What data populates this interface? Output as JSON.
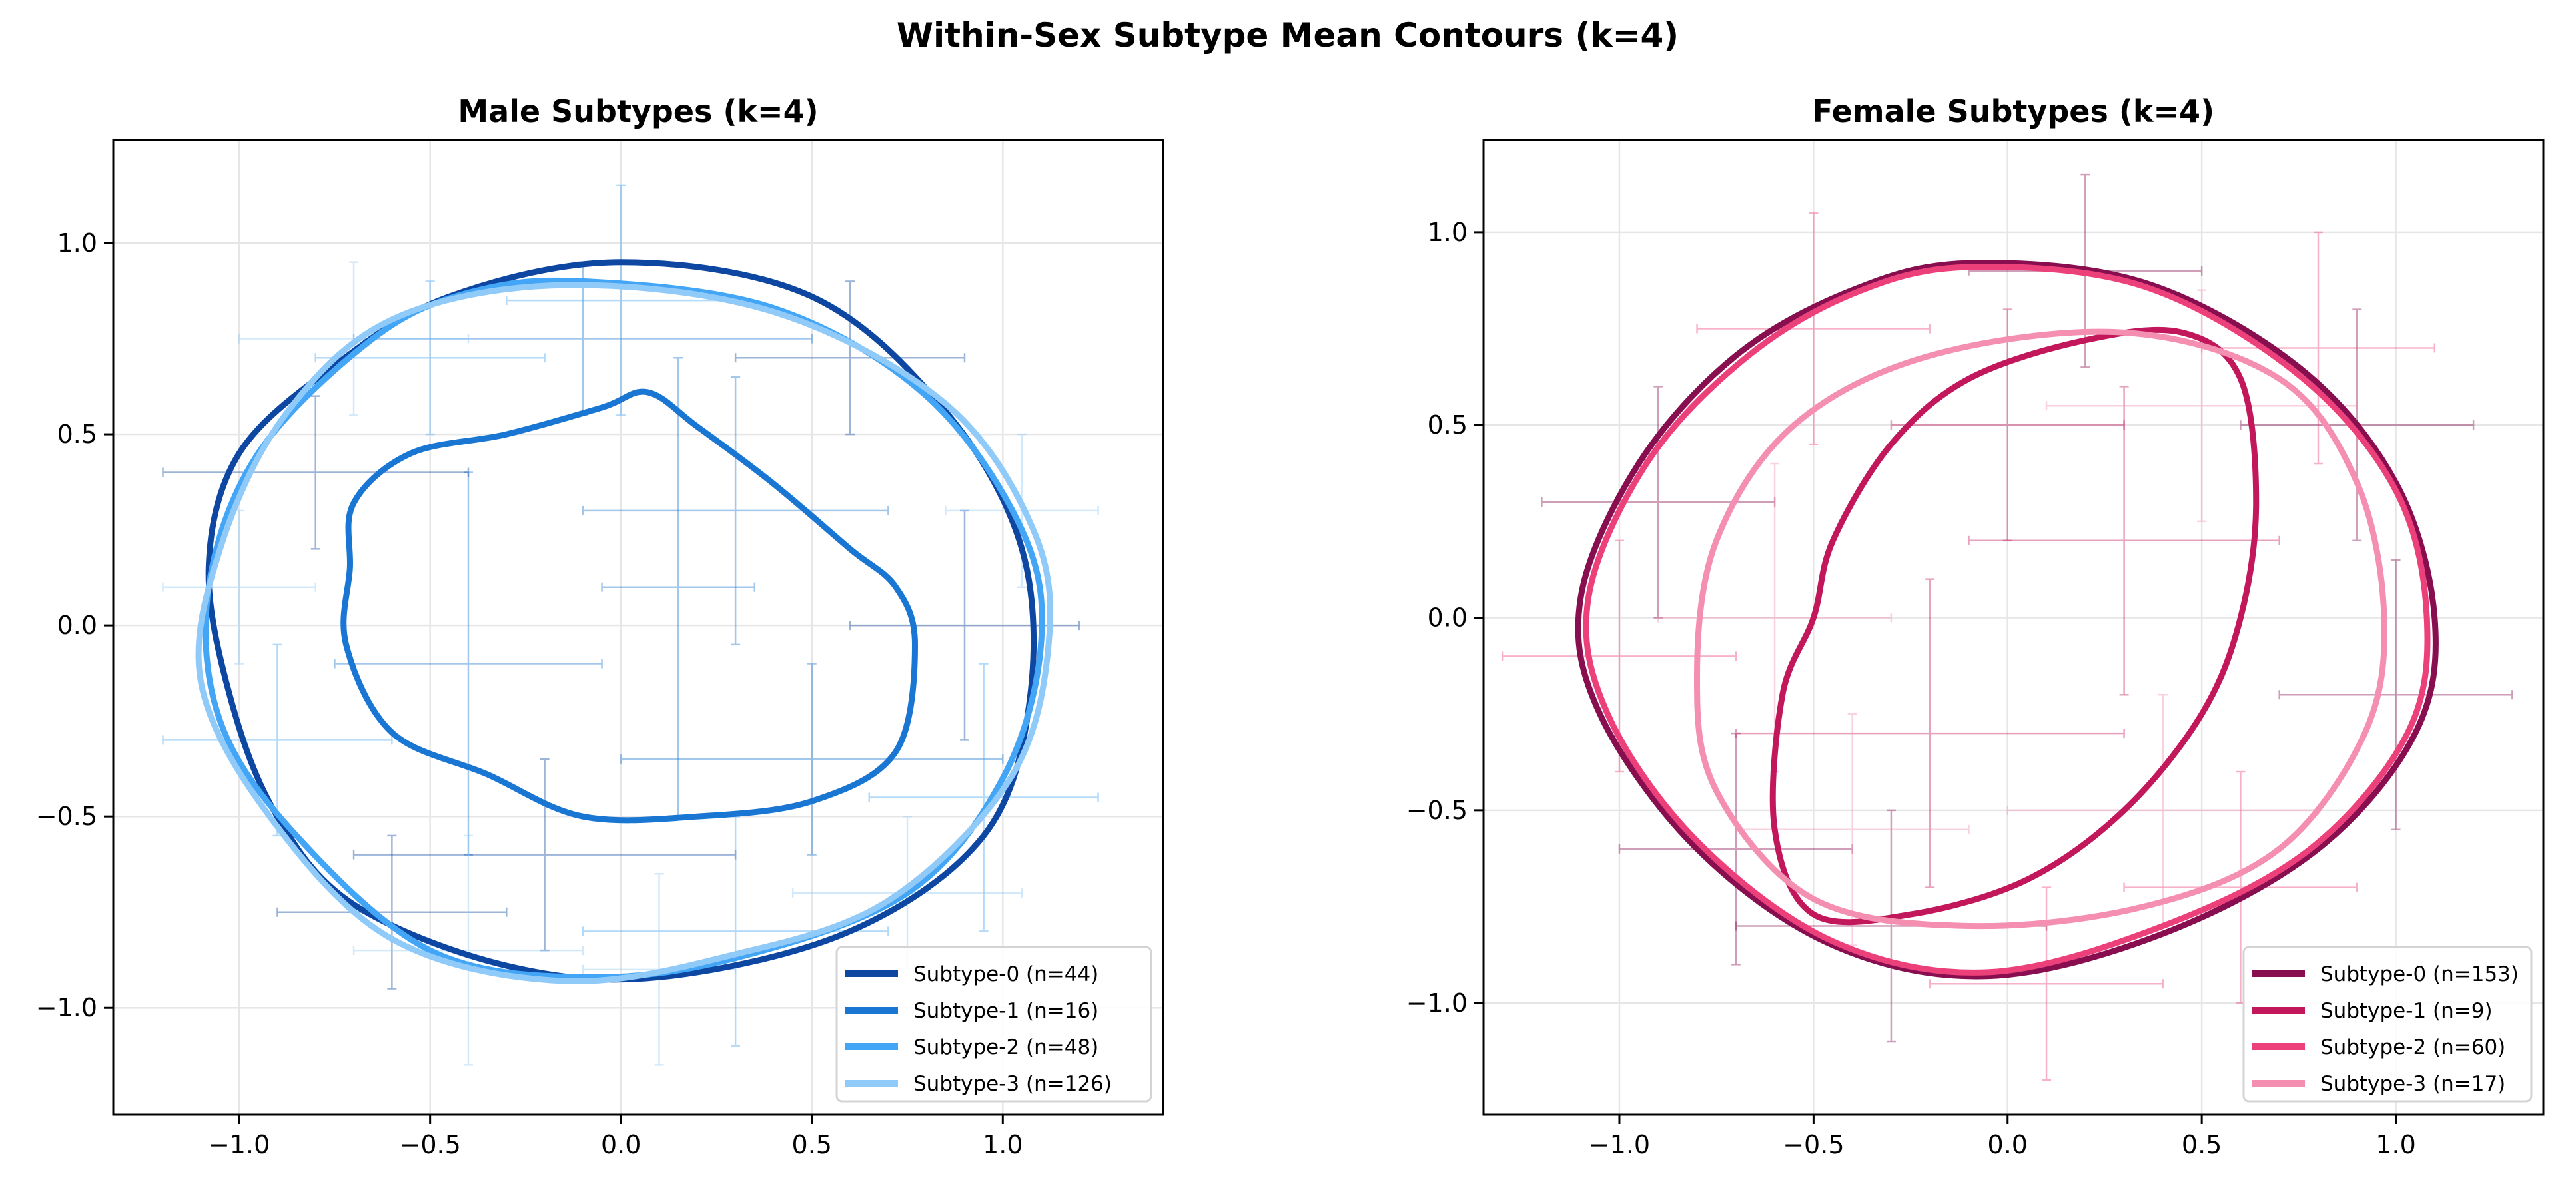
{
  "chart_data": {
    "suptitle": "Within-Sex Subtype Mean Contours (k=4)",
    "panels": [
      {
        "type": "line",
        "title": "Male Subtypes (k=4)",
        "xlim": [
          -1.33,
          1.42
        ],
        "ylim": [
          -1.28,
          1.27
        ],
        "xticks": [
          -1.0,
          -0.5,
          0.0,
          0.5,
          1.0
        ],
        "yticks": [
          -1.0,
          -0.5,
          0.0,
          0.5,
          1.0
        ],
        "xtick_labels": [
          "−1.0",
          "−0.5",
          "0.0",
          "0.5",
          "1.0"
        ],
        "ytick_labels": [
          "−1.0",
          "−0.5",
          "0.0",
          "0.5",
          "1.0"
        ],
        "grid": true,
        "legend_position": "lower-right",
        "series": [
          {
            "name": "Subtype-0 (n=44)",
            "color": "#0d47a1",
            "points": [
              [
                0,
                0.95
              ],
              [
                0.5,
                0.86
              ],
              [
                0.85,
                0.56
              ],
              [
                1.05,
                0.2
              ],
              [
                1.07,
                -0.2
              ],
              [
                0.95,
                -0.55
              ],
              [
                0.6,
                -0.8
              ],
              [
                0.1,
                -0.92
              ],
              [
                -0.3,
                -0.89
              ],
              [
                -0.7,
                -0.73
              ],
              [
                -0.9,
                -0.5
              ],
              [
                -1.02,
                -0.2
              ],
              [
                -1.08,
                0.15
              ],
              [
                -1.0,
                0.45
              ],
              [
                -0.75,
                0.68
              ],
              [
                -0.45,
                0.86
              ]
            ]
          },
          {
            "name": "Subtype-1 (n=16)",
            "color": "#1976d2",
            "points": [
              [
                0.07,
                0.61
              ],
              [
                0.2,
                0.52
              ],
              [
                0.4,
                0.37
              ],
              [
                0.6,
                0.2
              ],
              [
                0.72,
                0.1
              ],
              [
                0.77,
                -0.05
              ],
              [
                0.72,
                -0.33
              ],
              [
                0.5,
                -0.46
              ],
              [
                0.2,
                -0.5
              ],
              [
                -0.1,
                -0.5
              ],
              [
                -0.35,
                -0.39
              ],
              [
                -0.6,
                -0.28
              ],
              [
                -0.72,
                -0.05
              ],
              [
                -0.71,
                0.15
              ],
              [
                -0.7,
                0.32
              ],
              [
                -0.55,
                0.45
              ],
              [
                -0.3,
                0.5
              ],
              [
                -0.05,
                0.57
              ]
            ]
          },
          {
            "name": "Subtype-2 (n=48)",
            "color": "#42a5f5",
            "points": [
              [
                -0.1,
                0.9
              ],
              [
                0.4,
                0.83
              ],
              [
                0.8,
                0.6
              ],
              [
                1.05,
                0.25
              ],
              [
                1.1,
                -0.05
              ],
              [
                1.0,
                -0.4
              ],
              [
                0.75,
                -0.7
              ],
              [
                0.3,
                -0.87
              ],
              [
                -0.1,
                -0.92
              ],
              [
                -0.5,
                -0.85
              ],
              [
                -0.85,
                -0.55
              ],
              [
                -1.05,
                -0.25
              ],
              [
                -1.08,
                0.1
              ],
              [
                -0.95,
                0.45
              ],
              [
                -0.65,
                0.75
              ],
              [
                -0.4,
                0.87
              ]
            ]
          },
          {
            "name": "Subtype-3 (n=126)",
            "color": "#90caf9",
            "points": [
              [
                -0.15,
                0.89
              ],
              [
                0.4,
                0.82
              ],
              [
                0.85,
                0.58
              ],
              [
                1.08,
                0.25
              ],
              [
                1.12,
                -0.05
              ],
              [
                1.02,
                -0.4
              ],
              [
                0.7,
                -0.72
              ],
              [
                0.3,
                -0.86
              ],
              [
                -0.15,
                -0.93
              ],
              [
                -0.6,
                -0.82
              ],
              [
                -0.92,
                -0.5
              ],
              [
                -1.1,
                -0.15
              ],
              [
                -1.05,
                0.2
              ],
              [
                -0.88,
                0.55
              ],
              [
                -0.6,
                0.8
              ]
            ]
          }
        ],
        "errorbars": [
          [
            -0.1,
            0.75,
            0.6,
            0.2,
            1
          ],
          [
            0.3,
            0.3,
            0.4,
            0.35,
            1
          ],
          [
            -0.4,
            -0.1,
            0.35,
            0.5,
            1
          ],
          [
            0.5,
            -0.35,
            0.5,
            0.25,
            1
          ],
          [
            0.15,
            0.1,
            0.2,
            0.6,
            1
          ],
          [
            -0.8,
            0.4,
            0.4,
            0.2,
            0
          ],
          [
            0.9,
            0.0,
            0.3,
            0.3,
            0
          ],
          [
            -0.2,
            -0.6,
            0.5,
            0.25,
            0
          ],
          [
            0.6,
            0.7,
            0.3,
            0.2,
            0
          ],
          [
            -0.6,
            -0.75,
            0.3,
            0.2,
            0
          ],
          [
            -0.9,
            -0.3,
            0.3,
            0.25,
            2
          ],
          [
            0.95,
            -0.45,
            0.3,
            0.35,
            2
          ],
          [
            0.0,
            0.85,
            0.3,
            0.3,
            2
          ],
          [
            0.3,
            -0.8,
            0.4,
            0.3,
            2
          ],
          [
            -0.5,
            0.7,
            0.3,
            0.2,
            2
          ],
          [
            -1.0,
            0.1,
            0.2,
            0.2,
            3
          ],
          [
            1.05,
            0.3,
            0.2,
            0.2,
            3
          ],
          [
            -0.4,
            -0.85,
            0.3,
            0.3,
            3
          ],
          [
            0.1,
            -0.9,
            0.2,
            0.25,
            3
          ],
          [
            -0.7,
            0.75,
            0.3,
            0.2,
            3
          ],
          [
            0.75,
            -0.7,
            0.3,
            0.2,
            3
          ]
        ]
      },
      {
        "type": "line",
        "title": "Female Subtypes (k=4)",
        "xlim": [
          -1.35,
          1.38
        ],
        "ylim": [
          -1.29,
          1.24
        ],
        "xticks": [
          -1.0,
          -0.5,
          0.0,
          0.5,
          1.0
        ],
        "yticks": [
          -1.0,
          -0.5,
          0.0,
          0.5,
          1.0
        ],
        "xtick_labels": [
          "−1.0",
          "−0.5",
          "0.0",
          "0.5",
          "1.0"
        ],
        "ytick_labels": [
          "−1.0",
          "−0.5",
          "0.0",
          "0.5",
          "1.0"
        ],
        "grid": true,
        "legend_position": "lower-right",
        "series": [
          {
            "name": "Subtype-0 (n=153)",
            "color": "#880e4f",
            "points": [
              [
                -0.1,
                0.92
              ],
              [
                0.35,
                0.87
              ],
              [
                0.75,
                0.65
              ],
              [
                1.0,
                0.35
              ],
              [
                1.1,
                0.0
              ],
              [
                1.05,
                -0.3
              ],
              [
                0.8,
                -0.6
              ],
              [
                0.4,
                -0.82
              ],
              [
                -0.05,
                -0.93
              ],
              [
                -0.45,
                -0.85
              ],
              [
                -0.8,
                -0.6
              ],
              [
                -1.05,
                -0.25
              ],
              [
                -1.1,
                0.05
              ],
              [
                -0.95,
                0.4
              ],
              [
                -0.7,
                0.68
              ],
              [
                -0.4,
                0.85
              ]
            ]
          },
          {
            "name": "Subtype-1 (n=9)",
            "color": "#c2185b",
            "points": [
              [
                0.45,
                0.74
              ],
              [
                0.6,
                0.62
              ],
              [
                0.64,
                0.3
              ],
              [
                0.6,
                0.0
              ],
              [
                0.5,
                -0.25
              ],
              [
                0.3,
                -0.5
              ],
              [
                0.05,
                -0.68
              ],
              [
                -0.25,
                -0.77
              ],
              [
                -0.5,
                -0.77
              ],
              [
                -0.6,
                -0.55
              ],
              [
                -0.58,
                -0.2
              ],
              [
                -0.5,
                0.0
              ],
              [
                -0.45,
                0.2
              ],
              [
                -0.3,
                0.45
              ],
              [
                -0.1,
                0.62
              ],
              [
                0.2,
                0.72
              ]
            ]
          },
          {
            "name": "Subtype-2 (n=60)",
            "color": "#ec407a",
            "points": [
              [
                -0.1,
                0.91
              ],
              [
                0.35,
                0.86
              ],
              [
                0.75,
                0.63
              ],
              [
                1.0,
                0.33
              ],
              [
                1.08,
                0.0
              ],
              [
                1.03,
                -0.3
              ],
              [
                0.78,
                -0.6
              ],
              [
                0.4,
                -0.8
              ],
              [
                -0.05,
                -0.92
              ],
              [
                -0.45,
                -0.84
              ],
              [
                -0.8,
                -0.58
              ],
              [
                -1.03,
                -0.25
              ],
              [
                -1.08,
                0.05
              ],
              [
                -0.93,
                0.4
              ],
              [
                -0.68,
                0.67
              ],
              [
                -0.4,
                0.84
              ]
            ]
          },
          {
            "name": "Subtype-3 (n=17)",
            "color": "#f48fb1",
            "points": [
              [
                0.3,
                0.74
              ],
              [
                0.7,
                0.62
              ],
              [
                0.9,
                0.35
              ],
              [
                0.97,
                0.0
              ],
              [
                0.92,
                -0.3
              ],
              [
                0.7,
                -0.6
              ],
              [
                0.35,
                -0.75
              ],
              [
                -0.1,
                -0.8
              ],
              [
                -0.5,
                -0.73
              ],
              [
                -0.75,
                -0.45
              ],
              [
                -0.8,
                -0.15
              ],
              [
                -0.75,
                0.2
              ],
              [
                -0.55,
                0.5
              ],
              [
                -0.2,
                0.68
              ]
            ]
          }
        ],
        "errorbars": [
          [
            -0.9,
            0.3,
            0.3,
            0.3,
            0
          ],
          [
            0.9,
            0.5,
            0.3,
            0.3,
            0
          ],
          [
            -0.3,
            -0.8,
            0.4,
            0.3,
            0
          ],
          [
            0.2,
            0.9,
            0.3,
            0.25,
            0
          ],
          [
            1.0,
            -0.2,
            0.3,
            0.35,
            0
          ],
          [
            -0.7,
            -0.6,
            0.3,
            0.3,
            0
          ],
          [
            0.3,
            0.2,
            0.4,
            0.4,
            1
          ],
          [
            -0.2,
            -0.3,
            0.5,
            0.4,
            1
          ],
          [
            0.0,
            0.5,
            0.3,
            0.3,
            1
          ],
          [
            -1.0,
            -0.1,
            0.3,
            0.3,
            2
          ],
          [
            0.6,
            -0.7,
            0.3,
            0.3,
            2
          ],
          [
            -0.5,
            0.75,
            0.3,
            0.3,
            2
          ],
          [
            0.8,
            0.7,
            0.3,
            0.3,
            2
          ],
          [
            0.1,
            -0.95,
            0.3,
            0.25,
            2
          ],
          [
            0.5,
            0.55,
            0.4,
            0.3,
            3
          ],
          [
            -0.6,
            0.0,
            0.3,
            0.4,
            3
          ],
          [
            0.4,
            -0.5,
            0.4,
            0.3,
            3
          ],
          [
            -0.4,
            -0.55,
            0.3,
            0.3,
            3
          ]
        ]
      }
    ]
  }
}
